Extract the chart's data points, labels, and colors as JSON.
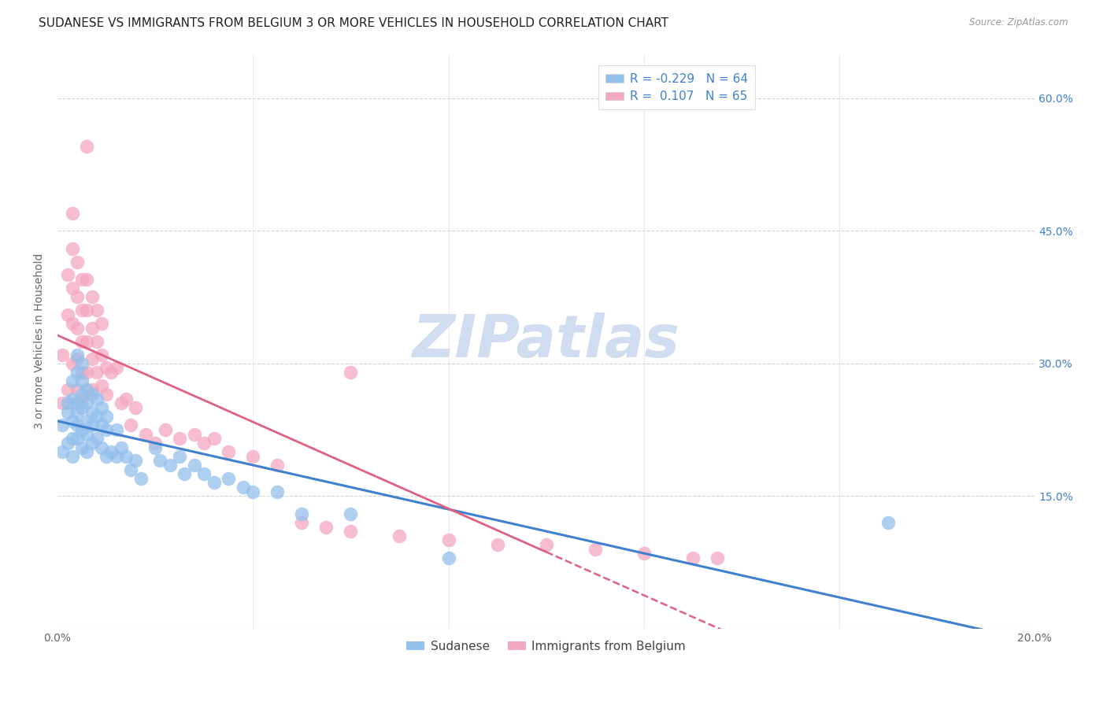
{
  "title": "SUDANESE VS IMMIGRANTS FROM BELGIUM 3 OR MORE VEHICLES IN HOUSEHOLD CORRELATION CHART",
  "source": "Source: ZipAtlas.com",
  "ylabel": "3 or more Vehicles in Household",
  "xlim": [
    0.0,
    0.2
  ],
  "ylim": [
    0.0,
    0.65
  ],
  "legend_label1": "Sudanese",
  "legend_label2": "Immigrants from Belgium",
  "R1": "-0.229",
  "N1": "64",
  "R2": "0.107",
  "N2": "65",
  "color1": "#93c0ec",
  "color2": "#f4a7c0",
  "line_color1": "#4080d0",
  "line_color2": "#e06080",
  "background": "#ffffff",
  "watermark": "ZIPatlas",
  "watermark_color": "#d0dcf0",
  "grid_color": "#c8c8c8",
  "title_fontsize": 11,
  "axis_label_fontsize": 10,
  "tick_fontsize": 10,
  "sudanese_x": [
    0.001,
    0.001,
    0.002,
    0.002,
    0.002,
    0.003,
    0.003,
    0.003,
    0.003,
    0.003,
    0.004,
    0.004,
    0.004,
    0.004,
    0.004,
    0.004,
    0.005,
    0.005,
    0.005,
    0.005,
    0.005,
    0.005,
    0.006,
    0.006,
    0.006,
    0.006,
    0.006,
    0.007,
    0.007,
    0.007,
    0.007,
    0.008,
    0.008,
    0.008,
    0.009,
    0.009,
    0.009,
    0.01,
    0.01,
    0.01,
    0.011,
    0.012,
    0.012,
    0.013,
    0.014,
    0.015,
    0.016,
    0.017,
    0.02,
    0.021,
    0.023,
    0.025,
    0.026,
    0.028,
    0.03,
    0.032,
    0.035,
    0.038,
    0.04,
    0.045,
    0.05,
    0.06,
    0.08,
    0.17
  ],
  "sudanese_y": [
    0.23,
    0.2,
    0.255,
    0.21,
    0.245,
    0.28,
    0.26,
    0.235,
    0.215,
    0.195,
    0.31,
    0.29,
    0.255,
    0.245,
    0.23,
    0.215,
    0.3,
    0.28,
    0.265,
    0.25,
    0.225,
    0.205,
    0.27,
    0.255,
    0.235,
    0.22,
    0.2,
    0.265,
    0.245,
    0.23,
    0.21,
    0.26,
    0.24,
    0.215,
    0.25,
    0.23,
    0.205,
    0.24,
    0.225,
    0.195,
    0.2,
    0.225,
    0.195,
    0.205,
    0.195,
    0.18,
    0.19,
    0.17,
    0.205,
    0.19,
    0.185,
    0.195,
    0.175,
    0.185,
    0.175,
    0.165,
    0.17,
    0.16,
    0.155,
    0.155,
    0.13,
    0.13,
    0.08,
    0.12
  ],
  "belgium_x": [
    0.001,
    0.001,
    0.002,
    0.002,
    0.002,
    0.003,
    0.003,
    0.003,
    0.003,
    0.003,
    0.004,
    0.004,
    0.004,
    0.004,
    0.004,
    0.005,
    0.005,
    0.005,
    0.005,
    0.005,
    0.006,
    0.006,
    0.006,
    0.006,
    0.006,
    0.007,
    0.007,
    0.007,
    0.007,
    0.008,
    0.008,
    0.008,
    0.009,
    0.009,
    0.009,
    0.01,
    0.01,
    0.011,
    0.012,
    0.013,
    0.014,
    0.015,
    0.016,
    0.018,
    0.02,
    0.022,
    0.025,
    0.028,
    0.03,
    0.032,
    0.035,
    0.04,
    0.045,
    0.05,
    0.055,
    0.06,
    0.07,
    0.08,
    0.09,
    0.1,
    0.11,
    0.12,
    0.13,
    0.135,
    0.06
  ],
  "belgium_y": [
    0.31,
    0.255,
    0.4,
    0.355,
    0.27,
    0.47,
    0.43,
    0.385,
    0.345,
    0.3,
    0.415,
    0.375,
    0.34,
    0.305,
    0.27,
    0.395,
    0.36,
    0.325,
    0.29,
    0.26,
    0.545,
    0.395,
    0.36,
    0.325,
    0.29,
    0.375,
    0.34,
    0.305,
    0.27,
    0.36,
    0.325,
    0.29,
    0.345,
    0.31,
    0.275,
    0.295,
    0.265,
    0.29,
    0.295,
    0.255,
    0.26,
    0.23,
    0.25,
    0.22,
    0.21,
    0.225,
    0.215,
    0.22,
    0.21,
    0.215,
    0.2,
    0.195,
    0.185,
    0.12,
    0.115,
    0.11,
    0.105,
    0.1,
    0.095,
    0.095,
    0.09,
    0.085,
    0.08,
    0.08,
    0.29
  ]
}
